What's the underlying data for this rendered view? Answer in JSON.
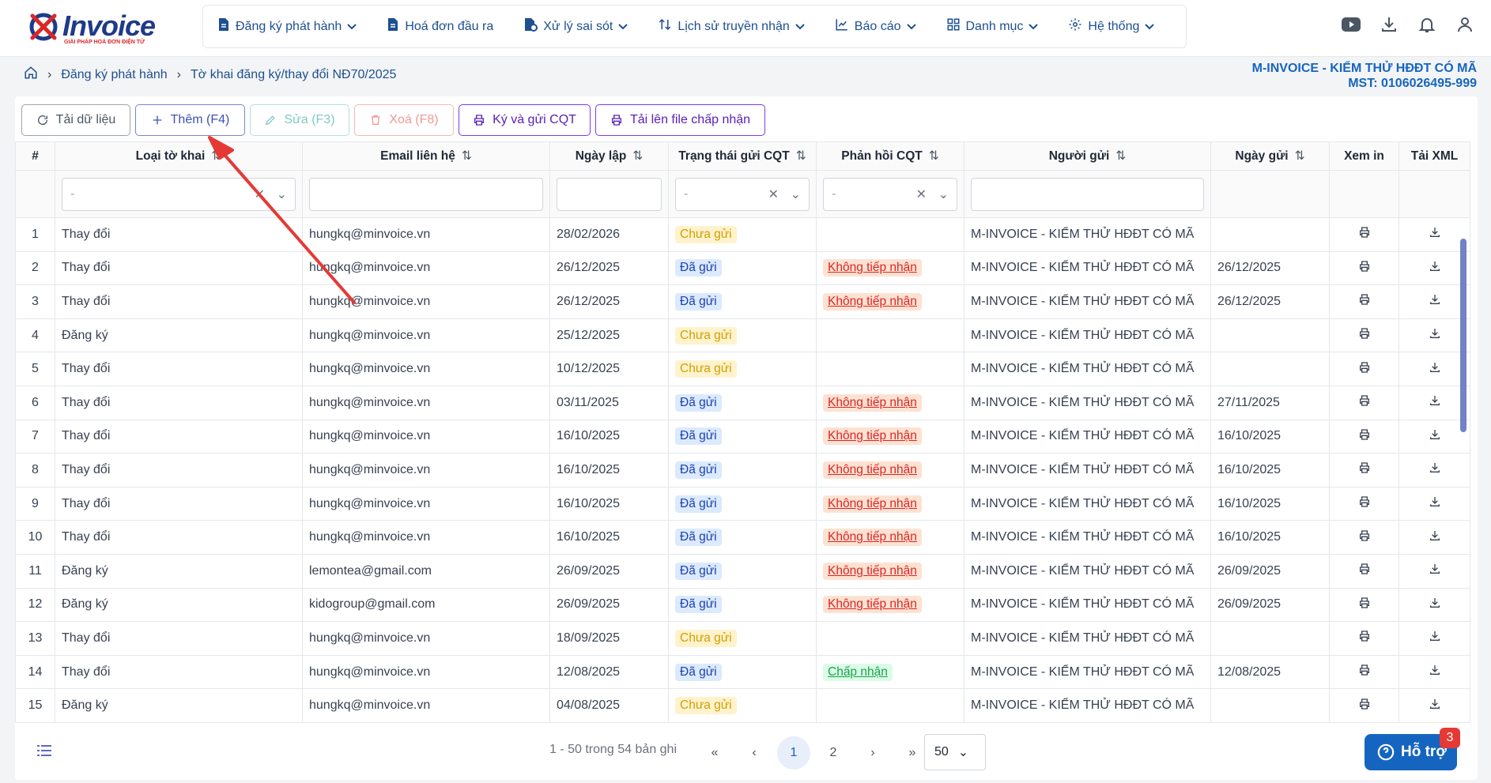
{
  "app": {
    "logo_text": "Invoice",
    "logo_tagline": "GIẢI PHÁP HOÁ ĐƠN ĐIỆN TỬ"
  },
  "nav": [
    {
      "label": "Đăng ký phát hành",
      "icon": "file-doc-icon",
      "dropdown": true
    },
    {
      "label": "Hoá đơn đầu ra",
      "icon": "file-doc-icon",
      "dropdown": false
    },
    {
      "label": "Xử lý sai sót",
      "icon": "file-fix-icon",
      "dropdown": true
    },
    {
      "label": "Lịch sử truyền nhận",
      "icon": "swap-vertical-icon",
      "dropdown": true
    },
    {
      "label": "Báo cáo",
      "icon": "chart-line-icon",
      "dropdown": true
    },
    {
      "label": "Danh mục",
      "icon": "grid-icon",
      "dropdown": true
    },
    {
      "label": "Hệ thống",
      "icon": "gear-icon",
      "dropdown": true
    }
  ],
  "breadcrumb": {
    "home_icon": "home-icon",
    "level1": "Đăng ký phát hành",
    "level2": "Tờ khai đăng ký/thay đổi NĐ70/2025"
  },
  "company": {
    "name": "M-INVOICE - KIỂM THỬ HĐĐT CÓ MÃ",
    "tax": "MST: 0106026495-999"
  },
  "toolbar": {
    "reload": "Tải dữ liệu",
    "add": "Thêm (F4)",
    "edit": "Sửa (F3)",
    "delete": "Xoá (F8)",
    "sign": "Ký và gửi CQT",
    "upload": "Tải lên file chấp nhận"
  },
  "columns": {
    "index": "#",
    "type": "Loại tờ khai",
    "email": "Email liên hệ",
    "date": "Ngày lập",
    "status": "Trạng thái gửi CQT",
    "response": "Phản hồi CQT",
    "sender": "Người gửi",
    "sent_date": "Ngày gửi",
    "view": "Xem in",
    "xml": "Tải XML"
  },
  "filters": {
    "type": "-",
    "status": "-",
    "response": "-"
  },
  "rows": [
    {
      "n": "1",
      "type": "Thay đổi",
      "email": "hungkq@minvoice.vn",
      "date": "28/02/2026",
      "status": "Chưa gửi",
      "status_kind": "wait",
      "response": "",
      "resp_kind": "",
      "sender": "M-INVOICE - KIỂM THỬ HĐĐT CÓ MÃ",
      "sent": ""
    },
    {
      "n": "2",
      "type": "Thay đổi",
      "email": "hungkq@minvoice.vn",
      "date": "26/12/2025",
      "status": "Đã gửi",
      "status_kind": "sent",
      "response": "Không tiếp nhận",
      "resp_kind": "rej",
      "sender": "M-INVOICE - KIỂM THỬ HĐĐT CÓ MÃ",
      "sent": "26/12/2025"
    },
    {
      "n": "3",
      "type": "Thay đổi",
      "email": "hungkq@minvoice.vn",
      "date": "26/12/2025",
      "status": "Đã gửi",
      "status_kind": "sent",
      "response": "Không tiếp nhận",
      "resp_kind": "rej",
      "sender": "M-INVOICE - KIỂM THỬ HĐĐT CÓ MÃ",
      "sent": "26/12/2025"
    },
    {
      "n": "4",
      "type": "Đăng ký",
      "email": "hungkq@minvoice.vn",
      "date": "25/12/2025",
      "status": "Chưa gửi",
      "status_kind": "wait",
      "response": "",
      "resp_kind": "",
      "sender": "M-INVOICE - KIỂM THỬ HĐĐT CÓ MÃ",
      "sent": ""
    },
    {
      "n": "5",
      "type": "Thay đổi",
      "email": "hungkq@minvoice.vn",
      "date": "10/12/2025",
      "status": "Chưa gửi",
      "status_kind": "wait",
      "response": "",
      "resp_kind": "",
      "sender": "M-INVOICE - KIỂM THỬ HĐĐT CÓ MÃ",
      "sent": ""
    },
    {
      "n": "6",
      "type": "Thay đổi",
      "email": "hungkq@minvoice.vn",
      "date": "03/11/2025",
      "status": "Đã gửi",
      "status_kind": "sent",
      "response": "Không tiếp nhận",
      "resp_kind": "rej",
      "sender": "M-INVOICE - KIỂM THỬ HĐĐT CÓ MÃ",
      "sent": "27/11/2025"
    },
    {
      "n": "7",
      "type": "Thay đổi",
      "email": "hungkq@minvoice.vn",
      "date": "16/10/2025",
      "status": "Đã gửi",
      "status_kind": "sent",
      "response": "Không tiếp nhận",
      "resp_kind": "rej",
      "sender": "M-INVOICE - KIỂM THỬ HĐĐT CÓ MÃ",
      "sent": "16/10/2025"
    },
    {
      "n": "8",
      "type": "Thay đổi",
      "email": "hungkq@minvoice.vn",
      "date": "16/10/2025",
      "status": "Đã gửi",
      "status_kind": "sent",
      "response": "Không tiếp nhận",
      "resp_kind": "rej",
      "sender": "M-INVOICE - KIỂM THỬ HĐĐT CÓ MÃ",
      "sent": "16/10/2025"
    },
    {
      "n": "9",
      "type": "Thay đổi",
      "email": "hungkq@minvoice.vn",
      "date": "16/10/2025",
      "status": "Đã gửi",
      "status_kind": "sent",
      "response": "Không tiếp nhận",
      "resp_kind": "rej",
      "sender": "M-INVOICE - KIỂM THỬ HĐĐT CÓ MÃ",
      "sent": "16/10/2025"
    },
    {
      "n": "10",
      "type": "Thay đổi",
      "email": "hungkq@minvoice.vn",
      "date": "16/10/2025",
      "status": "Đã gửi",
      "status_kind": "sent",
      "response": "Không tiếp nhận",
      "resp_kind": "rej",
      "sender": "M-INVOICE - KIỂM THỬ HĐĐT CÓ MÃ",
      "sent": "16/10/2025"
    },
    {
      "n": "11",
      "type": "Đăng ký",
      "email": "lemontea@gmail.com",
      "date": "26/09/2025",
      "status": "Đã gửi",
      "status_kind": "sent",
      "response": "Không tiếp nhận",
      "resp_kind": "rej",
      "sender": "M-INVOICE - KIỂM THỬ HĐĐT CÓ MÃ",
      "sent": "26/09/2025"
    },
    {
      "n": "12",
      "type": "Đăng ký",
      "email": "kidogroup@gmail.com",
      "date": "26/09/2025",
      "status": "Đã gửi",
      "status_kind": "sent",
      "response": "Không tiếp nhận",
      "resp_kind": "rej",
      "sender": "M-INVOICE - KIỂM THỬ HĐĐT CÓ MÃ",
      "sent": "26/09/2025"
    },
    {
      "n": "13",
      "type": "Thay đổi",
      "email": "hungkq@minvoice.vn",
      "date": "18/09/2025",
      "status": "Chưa gửi",
      "status_kind": "wait",
      "response": "",
      "resp_kind": "",
      "sender": "M-INVOICE - KIỂM THỬ HĐĐT CÓ MÃ",
      "sent": ""
    },
    {
      "n": "14",
      "type": "Thay đổi",
      "email": "hungkq@minvoice.vn",
      "date": "12/08/2025",
      "status": "Đã gửi",
      "status_kind": "sent",
      "response": "Chấp nhận",
      "resp_kind": "acc",
      "sender": "M-INVOICE - KIỂM THỬ HĐĐT CÓ MÃ",
      "sent": "12/08/2025"
    },
    {
      "n": "15",
      "type": "Đăng ký",
      "email": "hungkq@minvoice.vn",
      "date": "04/08/2025",
      "status": "Chưa gửi",
      "status_kind": "wait",
      "response": "",
      "resp_kind": "",
      "sender": "M-INVOICE - KIỂM THỬ HĐĐT CÓ MÃ",
      "sent": ""
    }
  ],
  "pagination": {
    "info": "1 - 50 trong 54 bản ghi",
    "pages": [
      "1",
      "2"
    ],
    "current": "1",
    "page_size": "50"
  },
  "support": {
    "label": "Hỗ trợ",
    "count": "3"
  },
  "colors": {
    "brand": "#1565c0",
    "nav_text": "#1e4f91",
    "annotation_arrow": "#e53935"
  }
}
